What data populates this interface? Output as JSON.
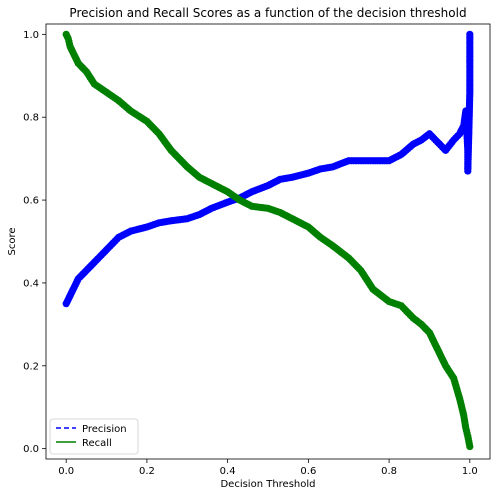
{
  "chart_data": {
    "type": "line",
    "title": "Precision and Recall Scores as a function of the decision threshold",
    "xlabel": "Decision Threshold",
    "ylabel": "Score",
    "xlim": [
      -0.05,
      1.05
    ],
    "ylim": [
      -0.025,
      1.025
    ],
    "xticks": [
      0.0,
      0.2,
      0.4,
      0.6,
      0.8,
      1.0
    ],
    "xtick_labels": [
      "0.0",
      "0.2",
      "0.4",
      "0.6",
      "0.8",
      "1.0"
    ],
    "yticks": [
      0.0,
      0.2,
      0.4,
      0.6,
      0.8,
      1.0
    ],
    "ytick_labels": [
      "0.0",
      "0.2",
      "0.4",
      "0.6",
      "0.8",
      "1.0"
    ],
    "grid": false,
    "legend_position": "lower-left",
    "series": [
      {
        "name": "Precision",
        "color": "#0000ff",
        "line_style": "dashed",
        "marker": "circle",
        "x": [
          0.0,
          0.005,
          0.01,
          0.02,
          0.03,
          0.05,
          0.07,
          0.1,
          0.13,
          0.16,
          0.2,
          0.23,
          0.26,
          0.3,
          0.33,
          0.36,
          0.4,
          0.43,
          0.46,
          0.5,
          0.53,
          0.56,
          0.6,
          0.63,
          0.66,
          0.7,
          0.73,
          0.76,
          0.8,
          0.83,
          0.86,
          0.88,
          0.9,
          0.92,
          0.94,
          0.96,
          0.975,
          0.985,
          0.99,
          0.995,
          0.995,
          0.998,
          1.0,
          1.0
        ],
        "y": [
          0.35,
          0.36,
          0.37,
          0.39,
          0.41,
          0.43,
          0.45,
          0.48,
          0.51,
          0.525,
          0.535,
          0.545,
          0.55,
          0.555,
          0.565,
          0.58,
          0.595,
          0.605,
          0.62,
          0.635,
          0.65,
          0.655,
          0.665,
          0.675,
          0.68,
          0.695,
          0.695,
          0.695,
          0.695,
          0.71,
          0.735,
          0.745,
          0.76,
          0.74,
          0.72,
          0.745,
          0.76,
          0.78,
          0.815,
          0.72,
          0.67,
          0.78,
          0.86,
          1.0
        ]
      },
      {
        "name": "Recall",
        "color": "#008000",
        "line_style": "solid",
        "marker": "circle",
        "x": [
          0.0,
          0.005,
          0.01,
          0.02,
          0.03,
          0.05,
          0.07,
          0.1,
          0.13,
          0.16,
          0.2,
          0.23,
          0.26,
          0.3,
          0.33,
          0.36,
          0.4,
          0.43,
          0.46,
          0.5,
          0.53,
          0.56,
          0.6,
          0.63,
          0.66,
          0.7,
          0.73,
          0.76,
          0.8,
          0.83,
          0.86,
          0.88,
          0.9,
          0.92,
          0.94,
          0.96,
          0.975,
          0.985,
          0.99,
          0.995,
          1.0
        ],
        "y": [
          1.0,
          0.99,
          0.97,
          0.95,
          0.93,
          0.91,
          0.88,
          0.86,
          0.84,
          0.815,
          0.79,
          0.76,
          0.72,
          0.68,
          0.655,
          0.64,
          0.62,
          0.6,
          0.585,
          0.58,
          0.57,
          0.555,
          0.535,
          0.51,
          0.49,
          0.46,
          0.43,
          0.385,
          0.355,
          0.345,
          0.315,
          0.3,
          0.28,
          0.24,
          0.2,
          0.17,
          0.12,
          0.08,
          0.05,
          0.03,
          0.005
        ]
      }
    ]
  }
}
